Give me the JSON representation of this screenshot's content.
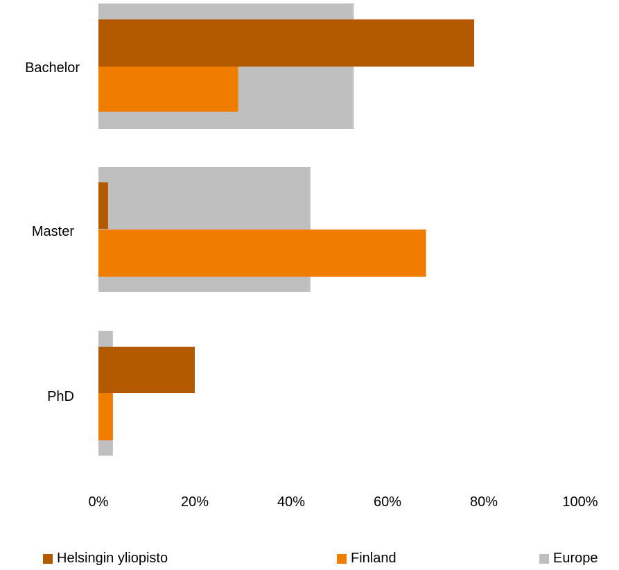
{
  "chart_data": {
    "type": "bar",
    "orientation": "horizontal",
    "categories": [
      "Bachelor",
      "Master",
      "PhD"
    ],
    "series": [
      {
        "name": "Helsingin yliopisto",
        "color": "#b35a00",
        "values": [
          78,
          2,
          20
        ]
      },
      {
        "name": "Finland",
        "color": "#f07d00",
        "values": [
          29,
          68,
          3
        ]
      },
      {
        "name": "Europe",
        "color": "#bfbfbf",
        "values": [
          53,
          44,
          3
        ]
      }
    ],
    "x_ticks": [
      "0%",
      "20%",
      "40%",
      "60%",
      "80%",
      "100%"
    ],
    "xlim": [
      0,
      100
    ],
    "x_unit": "%",
    "grid": false,
    "legend_position": "bottom"
  }
}
